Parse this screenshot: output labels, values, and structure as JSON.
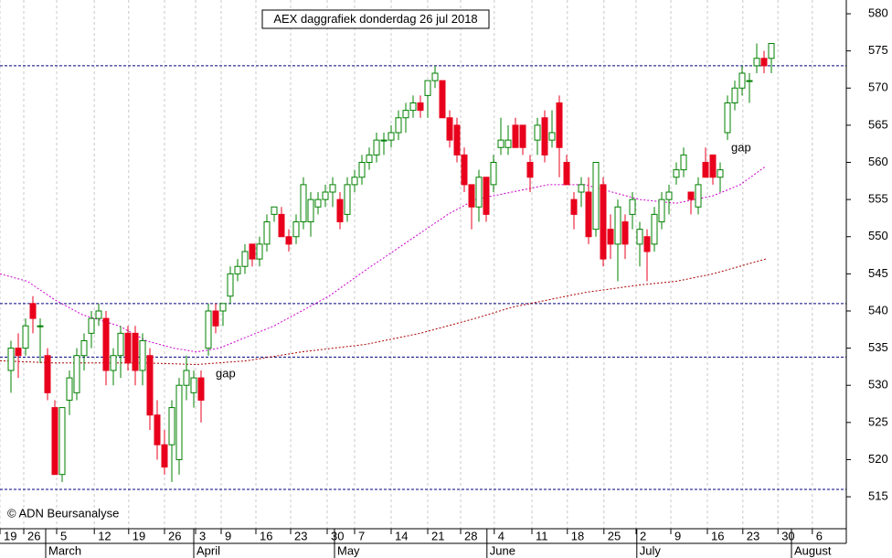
{
  "chart_data": {
    "type": "candlestick",
    "title": "AEX daggrafiek donderdag 26 jul 2018",
    "credit": "© ADN Beursanalyse",
    "annotations": [
      "gap",
      "gap"
    ],
    "x": [
      0,
      1,
      2,
      3,
      4,
      5,
      6,
      7,
      8,
      9,
      10,
      11,
      12,
      13,
      14,
      15,
      16,
      17,
      18,
      19,
      20,
      21,
      22,
      23,
      24,
      25,
      26,
      27,
      28,
      29,
      30,
      31,
      32,
      33,
      34,
      35,
      36,
      37,
      38,
      39,
      40,
      41,
      42,
      43,
      44,
      45,
      46,
      47,
      48,
      49,
      50,
      51,
      52,
      53,
      54,
      55,
      56,
      57,
      58,
      59,
      60,
      61,
      62,
      63,
      64,
      65,
      66,
      67,
      68,
      69,
      70,
      71,
      72,
      73,
      74,
      75,
      76,
      77,
      78,
      79,
      80,
      81,
      82,
      83,
      84,
      85,
      86,
      87,
      88,
      89,
      90,
      91,
      92,
      93,
      94,
      95,
      96,
      97,
      98,
      99,
      100,
      101,
      102,
      103,
      104
    ],
    "candles": [
      [
        532,
        536,
        529,
        535
      ],
      [
        535,
        537,
        531,
        534
      ],
      [
        535,
        539,
        534,
        538
      ],
      [
        541,
        542,
        537,
        539
      ],
      [
        538,
        539,
        533,
        538
      ],
      [
        534,
        535,
        528,
        529
      ],
      [
        527,
        528,
        518,
        518
      ],
      [
        518,
        527,
        517,
        527
      ],
      [
        528,
        532,
        526,
        531
      ],
      [
        529,
        535,
        528,
        534
      ],
      [
        534,
        537,
        532,
        536
      ],
      [
        537,
        540,
        535,
        539
      ],
      [
        539,
        541,
        538,
        540
      ],
      [
        539,
        540,
        530,
        532
      ],
      [
        532,
        535,
        530,
        534
      ],
      [
        534,
        538,
        531,
        537
      ],
      [
        537,
        538,
        532,
        533
      ],
      [
        537,
        538,
        530,
        532
      ],
      [
        532,
        537,
        530,
        536
      ],
      [
        534,
        535,
        524,
        526
      ],
      [
        526,
        528,
        520,
        522
      ],
      [
        522,
        524,
        518,
        519
      ],
      [
        522,
        528,
        517,
        527
      ],
      [
        520,
        531,
        518,
        530
      ],
      [
        530,
        534,
        528,
        532
      ],
      [
        529,
        532,
        527,
        531
      ],
      [
        531,
        532,
        525,
        528
      ],
      [
        535,
        541,
        534,
        540
      ],
      [
        540,
        541,
        537,
        538
      ],
      [
        540,
        541,
        538,
        541
      ],
      [
        542,
        546,
        541,
        545
      ],
      [
        545,
        547,
        544,
        546
      ],
      [
        546,
        549,
        545,
        548
      ],
      [
        549,
        549,
        546,
        547
      ],
      [
        547,
        550,
        546,
        549
      ],
      [
        549,
        553,
        548,
        552
      ],
      [
        553,
        554,
        552,
        554
      ],
      [
        553,
        554,
        550,
        550
      ],
      [
        550,
        551,
        548,
        549
      ],
      [
        550,
        553,
        549,
        552
      ],
      [
        552,
        558,
        551,
        557
      ],
      [
        552,
        556,
        550,
        555
      ],
      [
        554,
        556,
        553,
        555
      ],
      [
        555,
        557,
        554,
        556
      ],
      [
        556,
        558,
        554,
        557
      ],
      [
        555,
        556,
        551,
        552
      ],
      [
        553,
        558,
        552,
        557
      ],
      [
        557,
        559,
        556,
        558
      ],
      [
        558,
        561,
        557,
        560
      ],
      [
        560,
        562,
        559,
        561
      ],
      [
        561,
        564,
        560,
        563
      ],
      [
        563,
        564,
        561,
        563
      ],
      [
        563,
        565,
        562,
        564
      ],
      [
        564,
        567,
        563,
        566
      ],
      [
        566,
        568,
        564,
        567
      ],
      [
        567,
        569,
        566,
        568
      ],
      [
        568,
        569,
        566,
        567
      ],
      [
        569,
        571,
        566,
        571
      ],
      [
        571,
        573,
        570,
        572
      ],
      [
        571,
        571,
        566,
        566
      ],
      [
        566,
        567,
        562,
        563
      ],
      [
        565,
        566,
        560,
        561
      ],
      [
        561,
        562,
        556,
        557
      ],
      [
        557,
        557,
        551,
        554
      ],
      [
        554,
        559,
        552,
        558
      ],
      [
        558,
        558,
        552,
        553
      ],
      [
        557,
        561,
        556,
        560
      ],
      [
        562,
        566,
        561,
        563
      ],
      [
        562,
        565,
        561,
        563
      ],
      [
        565,
        566,
        562,
        562
      ],
      [
        565,
        565,
        561,
        562
      ],
      [
        560,
        561,
        556,
        558
      ],
      [
        563,
        566,
        561,
        565
      ],
      [
        566,
        567,
        560,
        561
      ],
      [
        563,
        567,
        562,
        564
      ],
      [
        568,
        569,
        558,
        562
      ],
      [
        560,
        561,
        557,
        557
      ],
      [
        555,
        556,
        551,
        553
      ],
      [
        556,
        558,
        554,
        557
      ],
      [
        556,
        558,
        549,
        550
      ],
      [
        551,
        560,
        550,
        560
      ],
      [
        557,
        558,
        546,
        547
      ],
      [
        551,
        553,
        547,
        549
      ],
      [
        549,
        555,
        544,
        554
      ],
      [
        552,
        553,
        547,
        549
      ],
      [
        553,
        556,
        551,
        555
      ],
      [
        549,
        552,
        546,
        551
      ],
      [
        550,
        551,
        544,
        548
      ],
      [
        549,
        554,
        548,
        553
      ],
      [
        552,
        556,
        551,
        555
      ],
      [
        555,
        557,
        553,
        556
      ],
      [
        558,
        560,
        557,
        559
      ],
      [
        559,
        562,
        558,
        561
      ],
      [
        556,
        556,
        553,
        555
      ],
      [
        554,
        558,
        553,
        557
      ],
      [
        560,
        562,
        558,
        558
      ],
      [
        561,
        561,
        557,
        558
      ],
      [
        558,
        560,
        556,
        559
      ],
      [
        564,
        569,
        563,
        568
      ],
      [
        568,
        571,
        567,
        570
      ],
      [
        570,
        573,
        569,
        572
      ],
      [
        571,
        572,
        568,
        571
      ],
      [
        573,
        576,
        572,
        574
      ],
      [
        574,
        575,
        572,
        573
      ],
      [
        574,
        576,
        572,
        576
      ]
    ],
    "up_color": "#008000",
    "down_color": "#e8001c",
    "series": [
      {
        "color": "#cc00cc",
        "x": [
          -1.5,
          2.25,
          6,
          9.75,
          14.75,
          18.5,
          22.25,
          25.4,
          28.5,
          32.25,
          36,
          39.75,
          43.5,
          48.5,
          52.25,
          56,
          59.75,
          63.5,
          68.5,
          73.5,
          78.5,
          82.25,
          86,
          91,
          96,
          99.75,
          103.25
        ],
        "values": [
          545,
          544,
          541.5,
          539.5,
          538,
          536,
          535,
          534.5,
          535,
          536.5,
          538,
          540,
          542,
          545.5,
          548,
          550.5,
          553,
          555,
          556,
          557,
          557,
          556,
          555,
          554.5,
          555.5,
          557,
          559.5
        ]
      },
      {
        "color": "#aa0000",
        "x": [
          -1.5,
          6,
          18.5,
          25.4,
          32.25,
          39.75,
          48.5,
          56,
          63.5,
          68.5,
          73.5,
          78.5,
          86,
          91,
          96,
          103.25
        ],
        "values": [
          533.3,
          533,
          533,
          532.8,
          533.3,
          534.5,
          535.5,
          537,
          539,
          540.5,
          541.5,
          542.5,
          543.5,
          544,
          545,
          547
        ]
      }
    ],
    "hlines": [
      573,
      541,
      533.8,
      516
    ],
    "hline_color": "#000080",
    "ylim": [
      510.7,
      581.85
    ],
    "yticks": [
      515,
      520,
      525,
      530,
      535,
      540,
      545,
      550,
      555,
      560,
      565,
      570,
      575,
      580
    ],
    "xlim": [
      -1.5,
      114.25
    ],
    "xticks": [
      {
        "value": -1.5,
        "label": "19"
      },
      {
        "value": 1.75,
        "label": "26"
      },
      {
        "value": 6.25,
        "label": "5"
      },
      {
        "value": 11.4,
        "label": "12"
      },
      {
        "value": 16.1,
        "label": "19"
      },
      {
        "value": 21,
        "label": "26"
      },
      {
        "value": 25.25,
        "label": "3"
      },
      {
        "value": 28.75,
        "label": "9"
      },
      {
        "value": 33.5,
        "label": "16"
      },
      {
        "value": 38.25,
        "label": "23"
      },
      {
        "value": 43.25,
        "label": "30"
      },
      {
        "value": 47,
        "label": "7"
      },
      {
        "value": 52,
        "label": "14"
      },
      {
        "value": 57,
        "label": "21"
      },
      {
        "value": 61.5,
        "label": "28"
      },
      {
        "value": 66.1,
        "label": "4"
      },
      {
        "value": 71.25,
        "label": "11"
      },
      {
        "value": 76.1,
        "label": "18"
      },
      {
        "value": 81.1,
        "label": "25"
      },
      {
        "value": 85.5,
        "label": "2"
      },
      {
        "value": 90.25,
        "label": "9"
      },
      {
        "value": 95.25,
        "label": "16"
      },
      {
        "value": 100.1,
        "label": "23"
      },
      {
        "value": 104.9,
        "label": "30"
      },
      {
        "value": 109.6,
        "label": "6"
      }
    ],
    "month_ticks": [
      {
        "value": 4.75,
        "label": "March"
      },
      {
        "value": 25,
        "label": "April"
      },
      {
        "value": 44.25,
        "label": "May"
      },
      {
        "value": 65.1,
        "label": "June"
      },
      {
        "value": 85.6,
        "label": "July"
      },
      {
        "value": 106.75,
        "label": "August"
      }
    ],
    "grid": true
  }
}
